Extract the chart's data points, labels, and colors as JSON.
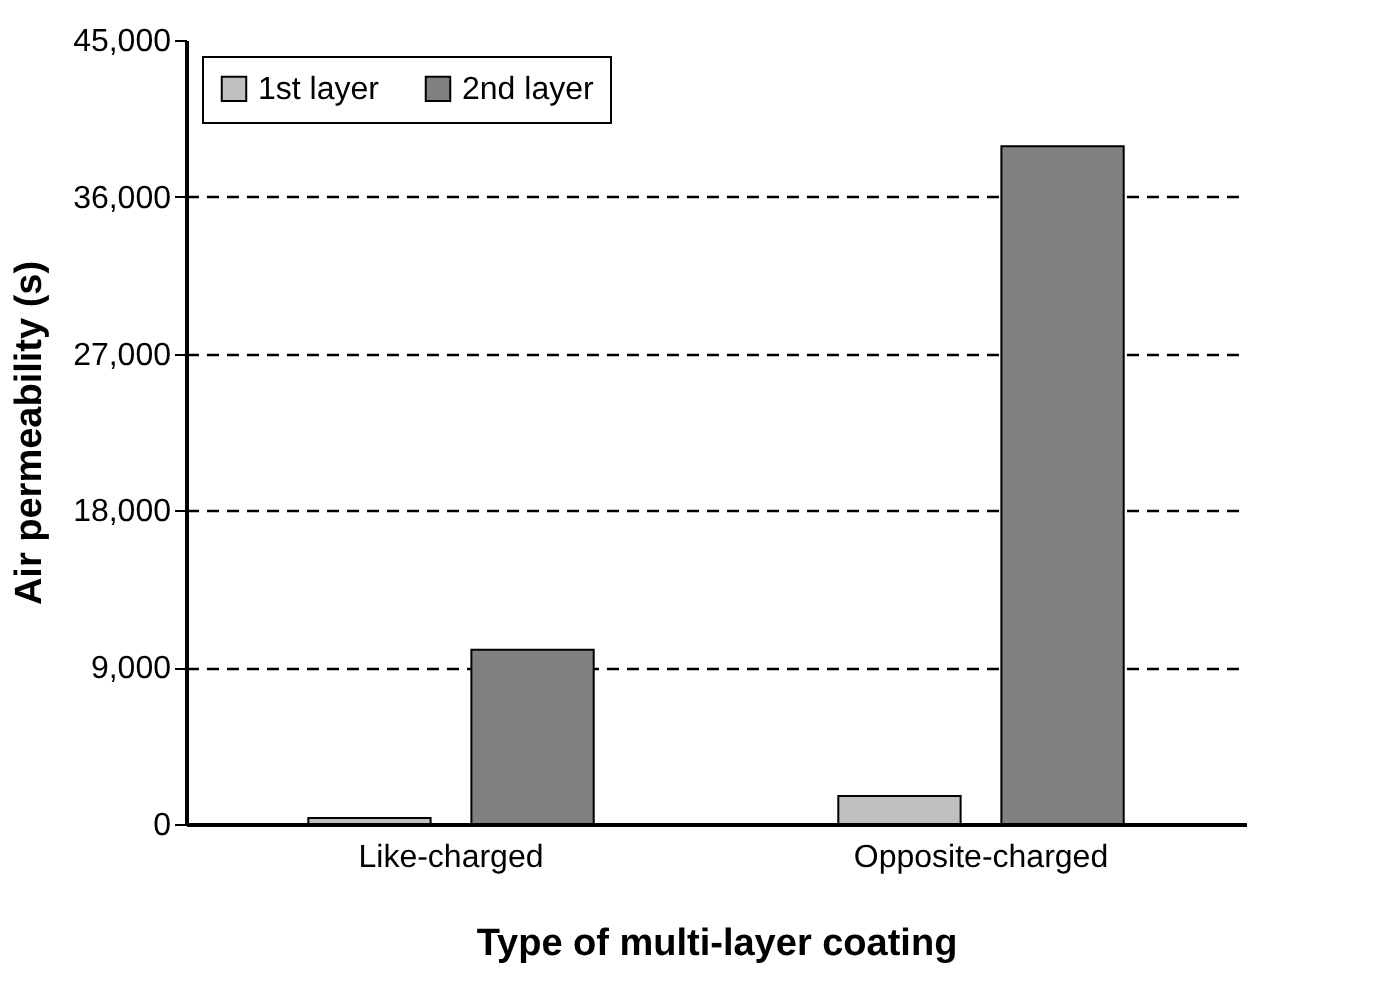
{
  "chart_data": {
    "type": "bar",
    "xlabel": "Type of multi-layer coating",
    "ylabel": "Air permeability (s)",
    "categories": [
      "Like-charged",
      "Opposite-charged"
    ],
    "series": [
      {
        "name": "1st layer",
        "color": "#c0c0c0",
        "values": [
          350,
          1600
        ]
      },
      {
        "name": "2nd layer",
        "color": "#808080",
        "values": [
          10000,
          38900
        ]
      }
    ],
    "ylim": [
      0,
      45000
    ],
    "yticks": [
      {
        "value": 0,
        "label": "0"
      },
      {
        "value": 9000,
        "label": "9,000"
      },
      {
        "value": 18000,
        "label": "18,000"
      },
      {
        "value": 27000,
        "label": "27,000"
      },
      {
        "value": 36000,
        "label": "36,000"
      },
      {
        "value": 45000,
        "label": "45,000"
      }
    ],
    "grid": "y",
    "line_style": "dashed",
    "legend": "top left"
  }
}
